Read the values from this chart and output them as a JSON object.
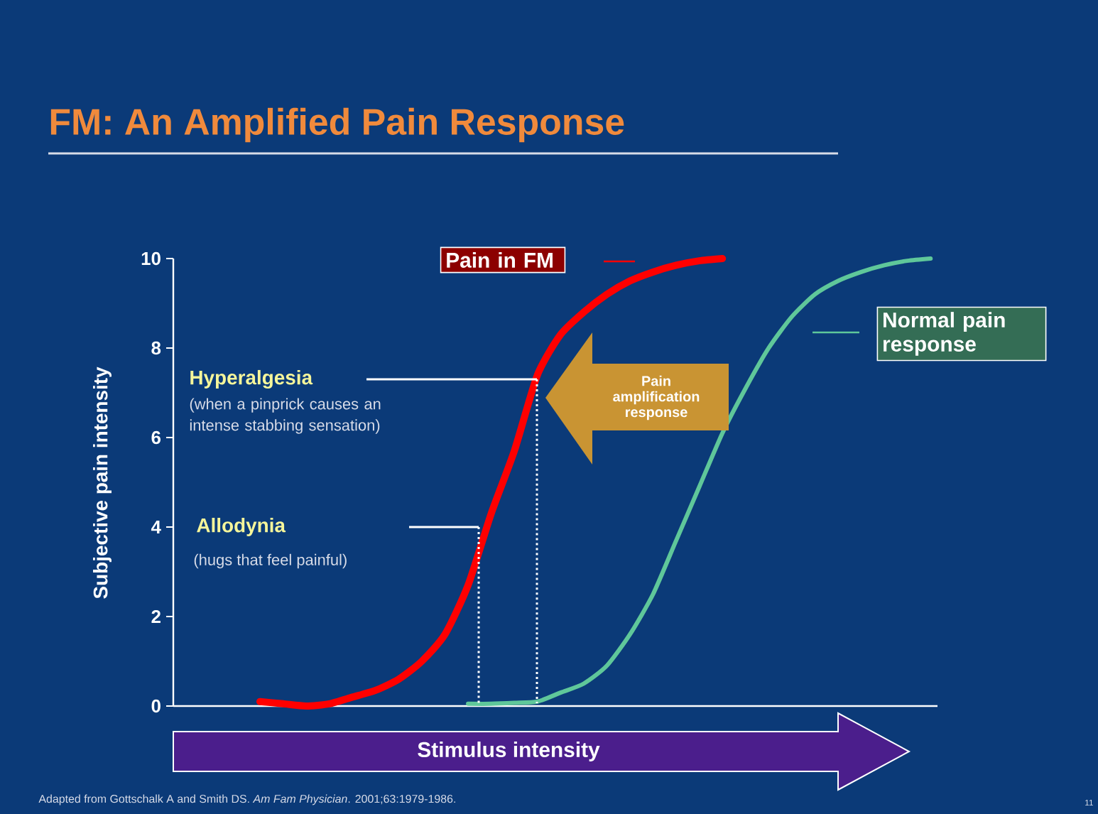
{
  "chart_data": {
    "type": "line",
    "title": "FM: An Amplified Pain Response",
    "xlabel": "Stimulus intensity",
    "ylabel": "Subjective pain intensity",
    "categories": [
      null,
      null,
      null,
      null,
      null,
      null,
      null,
      null,
      null,
      null,
      null,
      null,
      null,
      null,
      null,
      null,
      null,
      null,
      null,
      null,
      null,
      null,
      null,
      null,
      null,
      null,
      null,
      null,
      null,
      null
    ],
    "series": [
      {
        "name": "Pain in FM",
        "color": "#ff0000",
        "values": [
          0.1,
          0.05,
          0.0,
          0.05,
          0.2,
          0.35,
          0.6,
          1.0,
          1.6,
          2.7,
          4.3,
          5.7,
          7.4,
          8.3,
          8.8,
          9.2,
          9.5,
          9.7,
          9.85,
          9.95,
          10,
          null,
          null,
          null,
          null,
          null,
          null,
          null,
          null,
          null
        ]
      },
      {
        "name": "Normal pain response",
        "color": "#5fc79a",
        "values": [
          null,
          null,
          null,
          null,
          null,
          null,
          null,
          null,
          null,
          0.05,
          0.05,
          0.07,
          0.1,
          0.3,
          0.5,
          0.9,
          1.6,
          2.5,
          3.7,
          4.9,
          6.1,
          7.1,
          8.0,
          8.7,
          9.2,
          9.5,
          9.7,
          9.85,
          9.95,
          10
        ]
      }
    ],
    "ylim": [
      0,
      10
    ],
    "yticks": [
      0,
      2,
      4,
      6,
      8,
      10
    ],
    "annotations": [
      "Hyperalgesia",
      "(when a pinprick causes an intense stabbing sensation)",
      "Allodynia",
      "(hugs that feel painful)",
      "Pain amplification response",
      "Adapted from Gottschalk A and Smith DS. *Am Fam Physician*. 2001;63:1979-1986.",
      "11"
    ]
  }
}
